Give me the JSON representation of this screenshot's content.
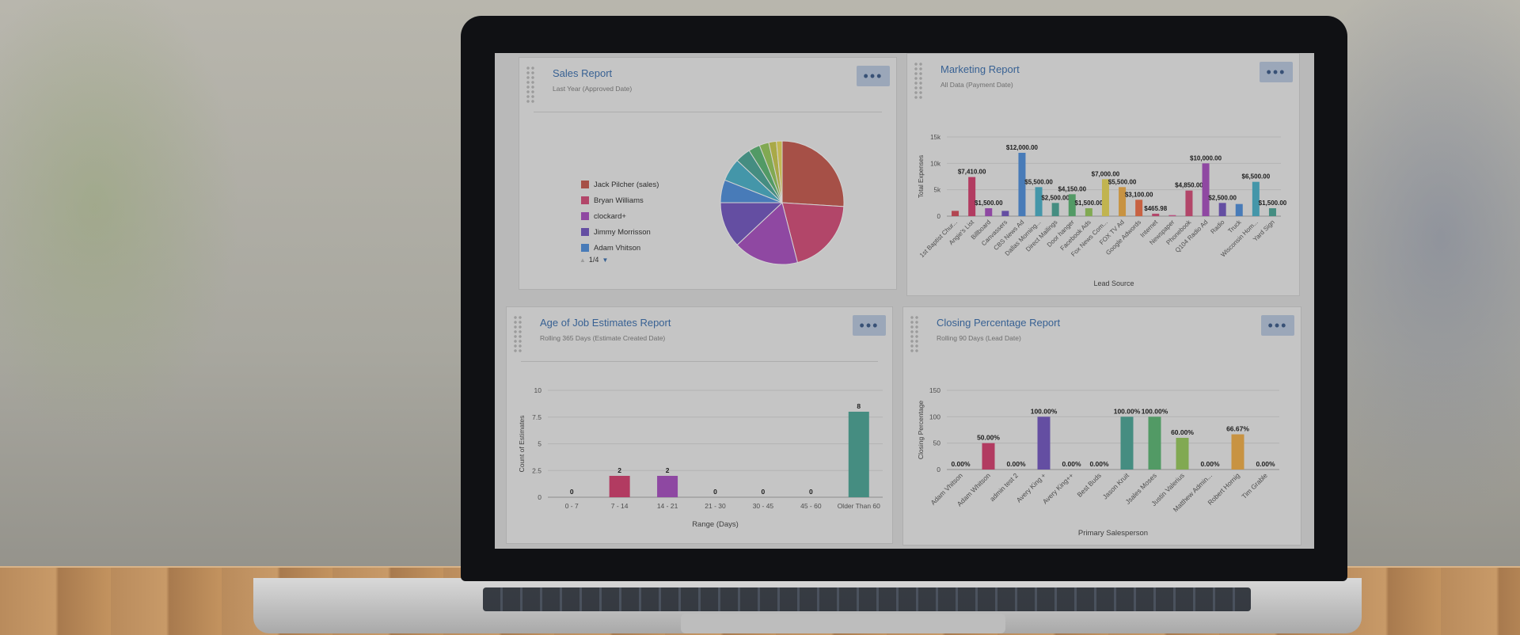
{
  "panels": {
    "sales": {
      "title": "Sales Report",
      "subtitle": "Last Year (Approved Date)",
      "more": "•••"
    },
    "marketing": {
      "title": "Marketing Report",
      "subtitle": "All Data (Payment Date)",
      "more": "•••"
    },
    "age": {
      "title": "Age of Job Estimates Report",
      "subtitle": "Rolling 365 Days (Estimate Created Date)",
      "more": "•••"
    },
    "closing": {
      "title": "Closing Percentage Report",
      "subtitle": "Rolling 90 Days (Lead Date)",
      "more": "•••"
    }
  },
  "legend": {
    "items": [
      {
        "label": "Jack Pilcher (sales)",
        "color": "#b5574e"
      },
      {
        "label": "Bryan Williams",
        "color": "#c24d72"
      },
      {
        "label": "clockard+",
        "color": "#9c4fb0"
      },
      {
        "label": "Jimmy Morrisson",
        "color": "#6d55b0"
      },
      {
        "label": "Adam Vhitson",
        "color": "#4f86c8"
      }
    ],
    "pager": "1/4"
  },
  "chart_data": [
    {
      "type": "pie",
      "title": "Sales Report",
      "slices": [
        {
          "label": "Jack Pilcher (sales)",
          "value": 26,
          "color": "#b5574e"
        },
        {
          "label": "Bryan Williams",
          "value": 20,
          "color": "#c24d72"
        },
        {
          "label": "clockard+",
          "value": 17,
          "color": "#9c4fb0"
        },
        {
          "label": "Jimmy Morrisson",
          "value": 12,
          "color": "#6d55b0"
        },
        {
          "label": "Adam Vhitson",
          "value": 6,
          "color": "#4f86c8"
        },
        {
          "label": "",
          "value": 6,
          "color": "#4aa3b8"
        },
        {
          "label": "",
          "value": 4,
          "color": "#4b9a8c"
        },
        {
          "label": "",
          "value": 3,
          "color": "#5aa86e"
        },
        {
          "label": "",
          "value": 2.5,
          "color": "#8cb85a"
        },
        {
          "label": "",
          "value": 2,
          "color": "#b8b84e"
        },
        {
          "label": "",
          "value": 1.5,
          "color": "#d4c85a"
        }
      ]
    },
    {
      "type": "bar",
      "title": "Marketing Report",
      "xlabel": "Lead Source",
      "ylabel": "Total Expenses",
      "ylim": [
        0,
        15000
      ],
      "yticks": [
        "0",
        "5k",
        "10k",
        "15k"
      ],
      "categories": [
        "1st Baptist Chur...",
        "Angie's List",
        "Billboard",
        "Canvassers",
        "CBS News Ad",
        "Dallas Morning...",
        "Direct Mailings",
        "Door hanger",
        "Facebook Ads",
        "Fox News Com...",
        "FOX TV Ad",
        "Google Adwords",
        "Internet",
        "Newspaper",
        "Phonebook",
        "Q104 Radio Ad",
        "Radio",
        "Truck",
        "Wisconsin Hom...",
        "Yard Sign"
      ],
      "values": [
        1000,
        7410,
        1500,
        1000,
        12000,
        5500,
        2500,
        4150,
        1500,
        7000,
        5500,
        3100,
        466,
        200,
        4850,
        10000,
        2500,
        2300,
        6500,
        1500
      ],
      "labels": [
        "",
        "$7,410.00",
        "$1,500.00",
        "",
        "$12,000.00",
        "$5,500.00",
        "$2,500.00",
        "$4,150.00",
        "$1,500.00",
        "$7,000.00",
        "$5,500.00",
        "$3,100.00",
        "$465.98",
        "",
        "$4,850.00",
        "$10,000.00",
        "$2,500.00",
        "",
        "$6,500.00",
        "$1,500.00"
      ],
      "colors": [
        "#c24d5a",
        "#c2406a",
        "#9b4fb0",
        "#6d55b0",
        "#4f86c8",
        "#4aa3b8",
        "#4b9a8c",
        "#5aa86e",
        "#8cb85a",
        "#d2c456",
        "#d9a048",
        "#d96b48",
        "#c24d72",
        "#c9568a",
        "#c24d72",
        "#9c4fb0",
        "#6d55b0",
        "#4f86c8",
        "#4aa3b8",
        "#4b9a8c"
      ]
    },
    {
      "type": "bar",
      "title": "Age of Job Estimates Report",
      "xlabel": "Range (Days)",
      "ylabel": "Count of Estimates",
      "ylim": [
        0,
        10
      ],
      "yticks": [
        "0",
        "2.5",
        "5",
        "7.5",
        "10"
      ],
      "categories": [
        "0 - 7",
        "7 - 14",
        "14 - 21",
        "21 - 30",
        "30 - 45",
        "45 - 60",
        "Older Than 60"
      ],
      "values": [
        0,
        2,
        2,
        0,
        0,
        0,
        8
      ],
      "labels": [
        "0",
        "2",
        "2",
        "0",
        "0",
        "0",
        "8"
      ],
      "colors": [
        "#c24d5a",
        "#c2406a",
        "#9b4fb0",
        "#6d55b0",
        "#4f86c8",
        "#4aa3b8",
        "#4b9a8c"
      ]
    },
    {
      "type": "bar",
      "title": "Closing Percentage Report",
      "xlabel": "Primary Salesperson",
      "ylabel": "Closing Percentage",
      "ylim": [
        0,
        150
      ],
      "yticks": [
        "0",
        "50",
        "100",
        "150"
      ],
      "categories": [
        "Adam Vhitson",
        "Adam Whitson",
        "admin test 2",
        "Avery King +",
        "Avery King++",
        "Best Buds",
        "Jason Kruit",
        "Jsales Moses",
        "Justin Valerius",
        "Matthew Admin...",
        "Robert Hornig",
        "Tim Grable"
      ],
      "values": [
        0,
        50,
        0,
        100,
        0,
        0,
        100,
        100,
        60,
        0,
        66.67,
        0
      ],
      "labels": [
        "0.00%",
        "50.00%",
        "0.00%",
        "100.00%",
        "0.00%",
        "0.00%",
        "100.00%",
        "100.00%",
        "60.00%",
        "0.00%",
        "66.67%",
        "0.00%"
      ],
      "colors": [
        "#c24d5a",
        "#c2406a",
        "#9b4fb0",
        "#6d55b0",
        "#4f86c8",
        "#4aa3b8",
        "#4b9a8c",
        "#5aa86e",
        "#8cb85a",
        "#d2c456",
        "#d9a048",
        "#d96b48"
      ]
    }
  ]
}
